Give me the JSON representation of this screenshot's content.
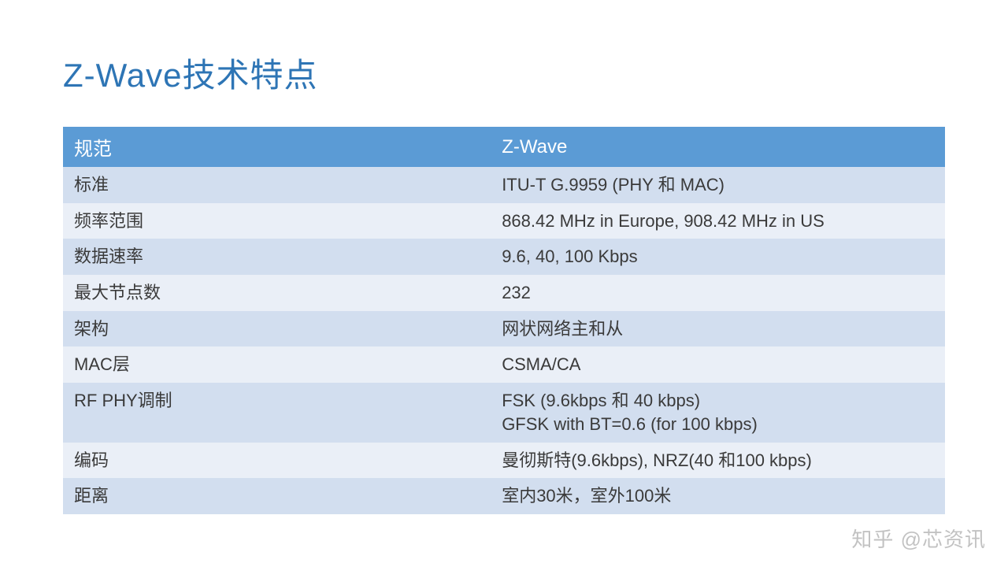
{
  "slide": {
    "title": "Z-Wave技术特点",
    "title_color": "#2e75b5",
    "title_fontsize": 42,
    "background_color": "#ffffff"
  },
  "table": {
    "type": "table",
    "header_bg": "#5b9bd5",
    "header_text_color": "#ffffff",
    "row_odd_bg": "#d2deef",
    "row_even_bg": "#eaeff7",
    "cell_text_color": "#3a3a3a",
    "font_size": 22,
    "header_font_size": 24,
    "col_widths_percent": [
      48.5,
      51.5
    ],
    "columns": [
      "规范",
      "Z-Wave"
    ],
    "rows": [
      {
        "key": "标准",
        "value": "ITU-T G.9959 (PHY 和 MAC)"
      },
      {
        "key": "频率范围",
        "value": "868.42 MHz in Europe, 908.42 MHz in US"
      },
      {
        "key": "数据速率",
        "value": "9.6, 40, 100 Kbps"
      },
      {
        "key": "最大节点数",
        "value": "232"
      },
      {
        "key": "架构",
        "value": "网状网络主和从"
      },
      {
        "key": "MAC层",
        "value": "CSMA/CA"
      },
      {
        "key": "RF PHY调制",
        "value": "FSK (9.6kbps 和 40 kbps)\nGFSK with BT=0.6 (for 100 kbps)"
      },
      {
        "key": "编码",
        "value": "曼彻斯特(9.6kbps), NRZ(40 和100 kbps)"
      },
      {
        "key": "距离",
        "value": "室内30米，室外100米"
      }
    ]
  },
  "watermark": {
    "text": "知乎 @芯资讯",
    "color": "rgba(120,120,120,0.45)",
    "font_size": 26
  }
}
